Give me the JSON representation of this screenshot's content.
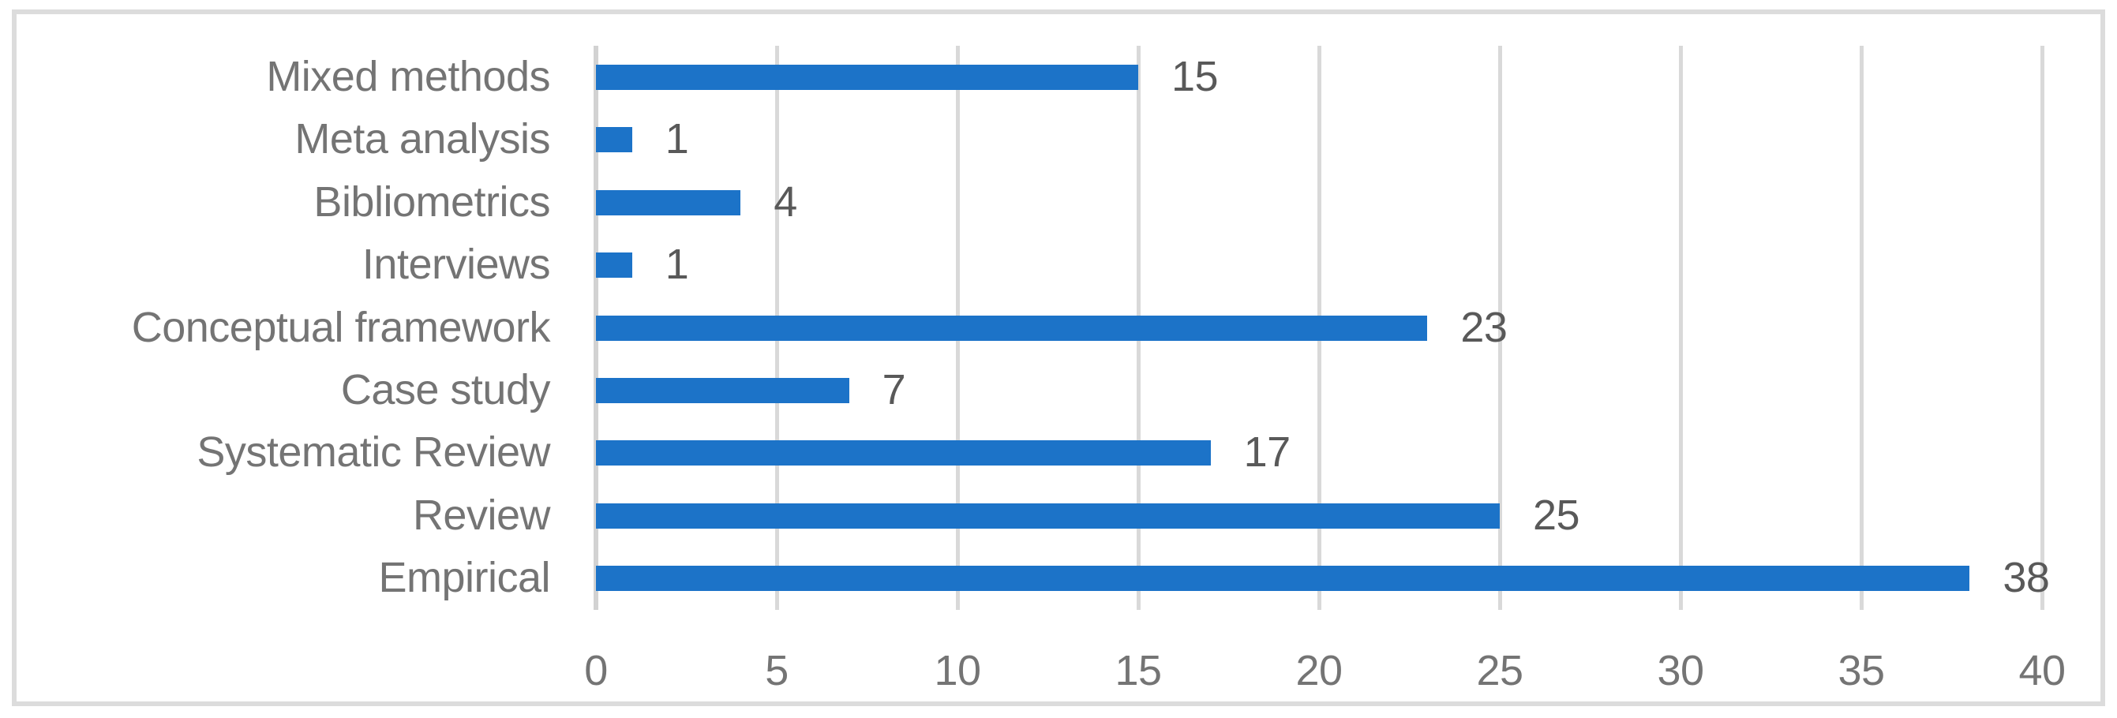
{
  "chart_data": {
    "type": "bar",
    "orientation": "horizontal",
    "title": "",
    "xlabel": "",
    "ylabel": "",
    "categories": [
      "Mixed methods",
      "Meta analysis",
      "Bibliometrics",
      "Interviews",
      "Conceptual framework",
      "Case study",
      "Systematic Review",
      "Review",
      "Empirical"
    ],
    "values": [
      15,
      1,
      4,
      1,
      23,
      7,
      17,
      25,
      38
    ],
    "data_labels": [
      "15",
      "1",
      "4",
      "1",
      "23",
      "7",
      "17",
      "25",
      "38"
    ],
    "x_ticks": [
      "0",
      "5",
      "10",
      "15",
      "20",
      "25",
      "30",
      "35",
      "40"
    ],
    "x_tick_values": [
      0,
      5,
      10,
      15,
      20,
      25,
      30,
      35,
      40
    ],
    "xlim": [
      0,
      40
    ],
    "grid": "vertical-major",
    "legend": "none",
    "colors": {
      "bar": "#1C73C8",
      "gridline": "#D9D9D9",
      "axis_line": "#D2D2D2",
      "category_label": "#747474",
      "value_label": "#595959",
      "tick_label": "#747474",
      "frame_border": "#DCDCDC",
      "background": "#FFFFFF"
    }
  }
}
